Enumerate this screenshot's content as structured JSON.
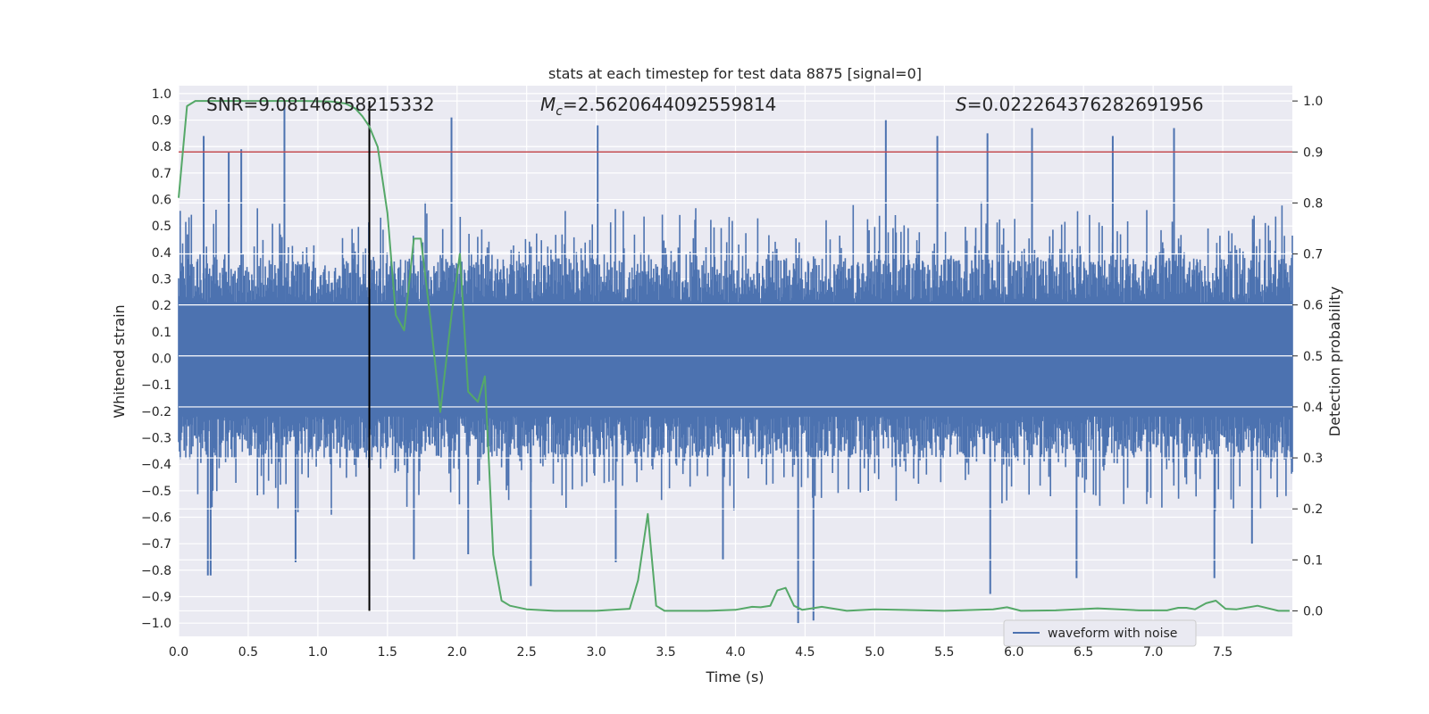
{
  "chart_data": {
    "type": "line",
    "title": "stats at each timestep for test data 8875 [signal=0]",
    "xlabel": "Time (s)",
    "ylabel_left": "Whitened strain",
    "ylabel_right": "Detection probability",
    "xlim": [
      0.0,
      8.0
    ],
    "ylim_left": [
      -1.05,
      1.03
    ],
    "ylim_right": [
      -0.05,
      1.03
    ],
    "xticks": [
      "0.0",
      "0.5",
      "1.0",
      "1.5",
      "2.0",
      "2.5",
      "3.0",
      "3.5",
      "4.0",
      "4.5",
      "5.0",
      "5.5",
      "6.0",
      "6.5",
      "7.0",
      "7.5"
    ],
    "yticks_left": [
      "1.0",
      "0.9",
      "0.8",
      "0.7",
      "0.6",
      "0.5",
      "0.4",
      "0.3",
      "0.2",
      "0.1",
      "0.0",
      "-0.1",
      "-0.2",
      "-0.3",
      "-0.4",
      "-0.5",
      "-0.6",
      "-0.7",
      "-0.8",
      "-0.9",
      "-1.0"
    ],
    "yticks_right": [
      "1.0",
      "0.9",
      "0.8",
      "0.7",
      "0.6",
      "0.5",
      "0.4",
      "0.3",
      "0.2",
      "0.1",
      "0.0"
    ],
    "grid": true,
    "annotations": {
      "snr": "SNR=9.08146858215332",
      "mc_symbol": "M",
      "mc_sub": "c",
      "mc_value": "=2.5620644092559814",
      "s_symbol": "S",
      "s_value": "=0.022264376282691956"
    },
    "legend": {
      "label": "waveform with noise",
      "position": "bottom-right"
    },
    "colors": {
      "waveform": "#4c72b0",
      "probability": "#55a868",
      "threshold": "#c44e52",
      "marker": "#000000",
      "background": "#eaeaf2"
    },
    "threshold_probability": 0.9,
    "marker_time": 1.37,
    "waveform": {
      "name": "waveform with noise",
      "typical_envelope": 0.38,
      "spikes": [
        [
          0.18,
          0.84
        ],
        [
          0.21,
          -0.82
        ],
        [
          0.23,
          -0.82
        ],
        [
          0.36,
          0.78
        ],
        [
          0.45,
          0.79
        ],
        [
          0.76,
          0.97
        ],
        [
          0.84,
          -0.77
        ],
        [
          1.37,
          -0.76
        ],
        [
          1.69,
          -0.76
        ],
        [
          1.96,
          0.91
        ],
        [
          2.08,
          -0.74
        ],
        [
          2.53,
          -0.86
        ],
        [
          3.01,
          0.88
        ],
        [
          3.14,
          -0.77
        ],
        [
          3.91,
          -0.76
        ],
        [
          4.45,
          -1.0
        ],
        [
          4.56,
          -0.99
        ],
        [
          5.08,
          0.9
        ],
        [
          5.45,
          0.84
        ],
        [
          5.81,
          0.85
        ],
        [
          5.83,
          -0.89
        ],
        [
          6.13,
          0.87
        ],
        [
          6.45,
          -0.83
        ],
        [
          6.71,
          0.84
        ],
        [
          7.15,
          0.87
        ],
        [
          7.44,
          -0.83
        ],
        [
          7.71,
          -0.7
        ]
      ]
    },
    "probability": {
      "name": "detection probability",
      "x": [
        0.0,
        0.06,
        0.12,
        0.3,
        0.6,
        0.9,
        1.1,
        1.2,
        1.27,
        1.32,
        1.37,
        1.43,
        1.5,
        1.56,
        1.62,
        1.69,
        1.74,
        1.81,
        1.88,
        1.96,
        2.02,
        2.08,
        2.15,
        2.2,
        2.26,
        2.32,
        2.38,
        2.5,
        2.7,
        3.0,
        3.24,
        3.3,
        3.37,
        3.43,
        3.49,
        3.6,
        3.8,
        4.0,
        4.12,
        4.18,
        4.25,
        4.3,
        4.36,
        4.42,
        4.48,
        4.55,
        4.62,
        4.8,
        5.0,
        5.5,
        5.85,
        5.95,
        6.05,
        6.3,
        6.6,
        6.9,
        7.1,
        7.18,
        7.24,
        7.3,
        7.38,
        7.45,
        7.52,
        7.6,
        7.75,
        7.9,
        7.98
      ],
      "y": [
        0.81,
        0.99,
        1.0,
        1.0,
        1.0,
        1.0,
        0.999,
        0.995,
        0.985,
        0.97,
        0.95,
        0.91,
        0.78,
        0.58,
        0.55,
        0.73,
        0.73,
        0.57,
        0.39,
        0.58,
        0.7,
        0.43,
        0.41,
        0.46,
        0.11,
        0.02,
        0.01,
        0.003,
        0.0,
        0.0,
        0.004,
        0.06,
        0.19,
        0.01,
        0.0,
        0.0,
        0.0,
        0.002,
        0.008,
        0.007,
        0.01,
        0.04,
        0.045,
        0.01,
        0.002,
        0.005,
        0.008,
        0.0,
        0.003,
        0.0,
        0.003,
        0.007,
        0.0,
        0.001,
        0.005,
        0.001,
        0.001,
        0.006,
        0.006,
        0.003,
        0.015,
        0.02,
        0.004,
        0.003,
        0.01,
        0.0,
        0.0
      ]
    }
  }
}
